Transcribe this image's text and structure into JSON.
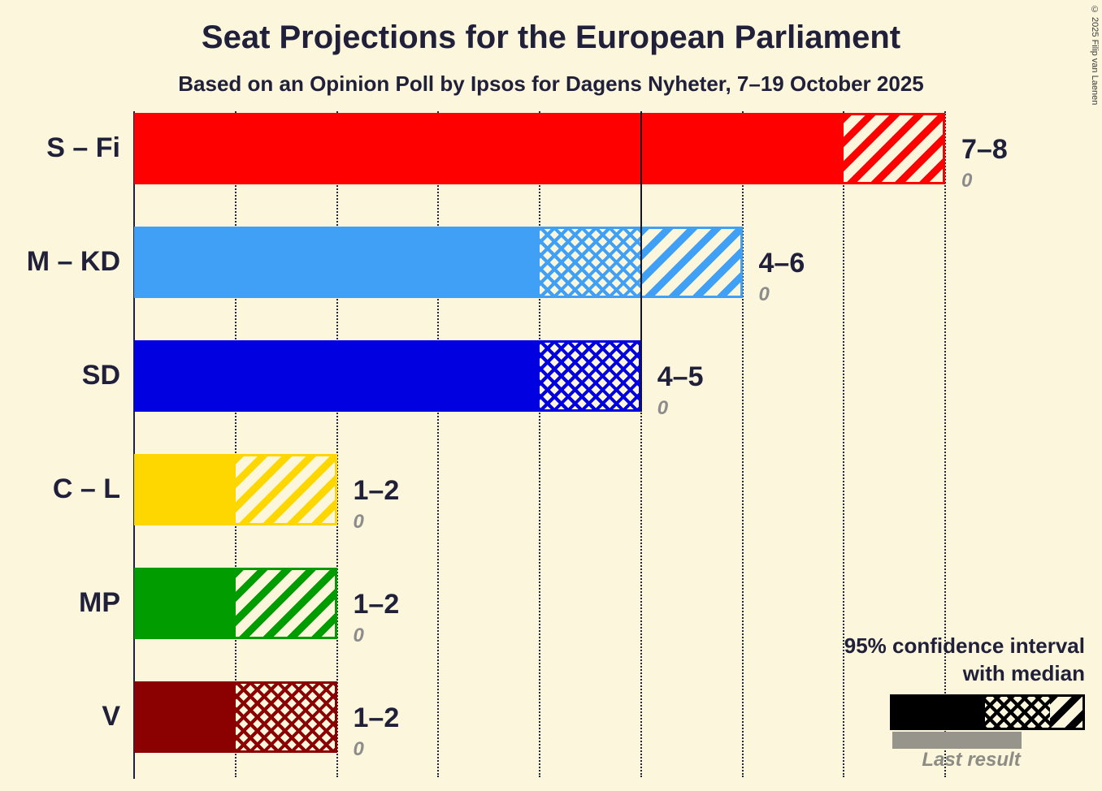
{
  "chart_data": {
    "type": "bar",
    "orientation": "horizontal",
    "title": "Seat Projections for the European Parliament",
    "subtitle": "Based on an Opinion Poll by Ipsos for Dagens Nyheter, 7–19 October 2025",
    "xlim": [
      0,
      8
    ],
    "gridline_step": 1,
    "solid_gridline_at": 5,
    "grid": true,
    "categories": [
      "S – Fi",
      "M – KD",
      "SD",
      "C – L",
      "MP",
      "V"
    ],
    "series": [
      {
        "party": "S – Fi",
        "color": "#FF0000",
        "ci_low": 7,
        "median": 7,
        "ci_high": 8,
        "range_label": "7–8",
        "last_result": 0
      },
      {
        "party": "M – KD",
        "color": "#3FA0F5",
        "ci_low": 4,
        "median": 5,
        "ci_high": 6,
        "range_label": "4–6",
        "last_result": 0
      },
      {
        "party": "SD",
        "color": "#0000E0",
        "ci_low": 4,
        "median": 5,
        "ci_high": 5,
        "range_label": "4–5",
        "last_result": 0
      },
      {
        "party": "C – L",
        "color": "#FFD700",
        "ci_low": 1,
        "median": 1,
        "ci_high": 2,
        "range_label": "1–2",
        "last_result": 0
      },
      {
        "party": "MP",
        "color": "#009C00",
        "ci_low": 1,
        "median": 1,
        "ci_high": 2,
        "range_label": "1–2",
        "last_result": 0
      },
      {
        "party": "V",
        "color": "#8B0000",
        "ci_low": 1,
        "median": 2,
        "ci_high": 2,
        "range_label": "1–2",
        "last_result": 0
      }
    ]
  },
  "legend": {
    "ci_label_line1": "95% confidence interval",
    "ci_label_line2": "with median",
    "last_result_label": "Last result",
    "sample_color": "#000000",
    "last_result_color": "#97958B"
  },
  "page": {
    "copyright": "© 2025 Filip van Laenen",
    "background_color": "#FCF6DC",
    "text_color": "#20203A"
  }
}
